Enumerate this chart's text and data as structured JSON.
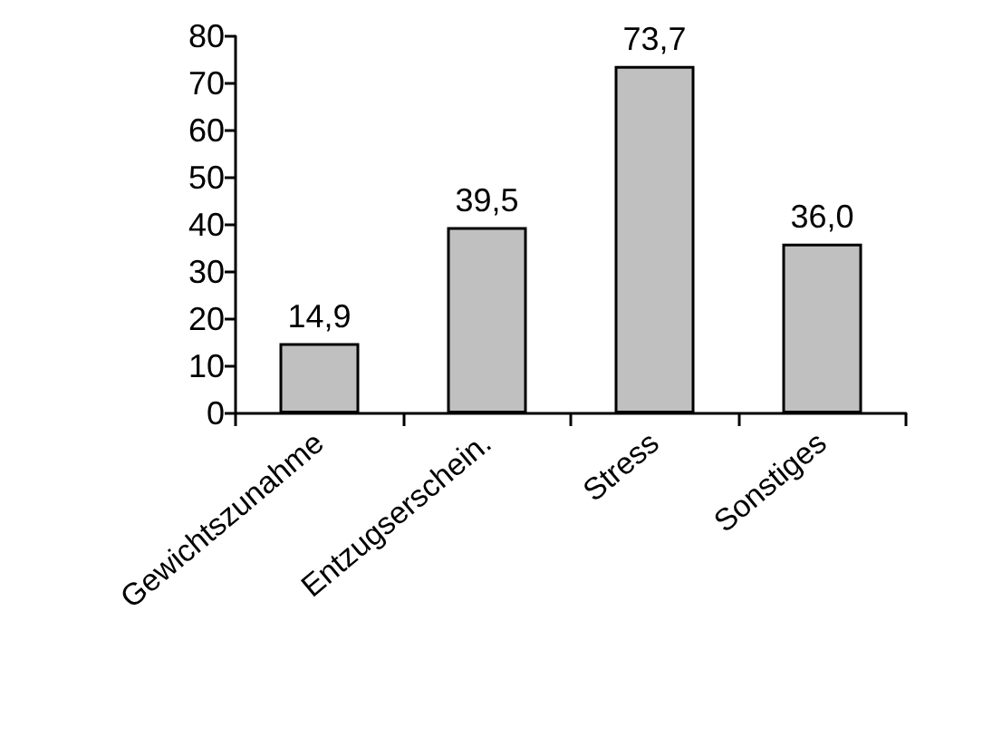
{
  "chart_data": {
    "type": "bar",
    "categories": [
      "Gewichtszunahme",
      "Entzugserschein.",
      "Stress",
      "Sonstiges"
    ],
    "values": [
      14.9,
      39.5,
      73.7,
      36.0
    ],
    "value_labels": [
      "14,9",
      "39,5",
      "73,7",
      "36,0"
    ],
    "color": "#c0c0c0",
    "ylim": [
      0,
      80
    ],
    "yticks": [
      0,
      10,
      20,
      30,
      40,
      50,
      60,
      70,
      80
    ],
    "grid": false
  }
}
